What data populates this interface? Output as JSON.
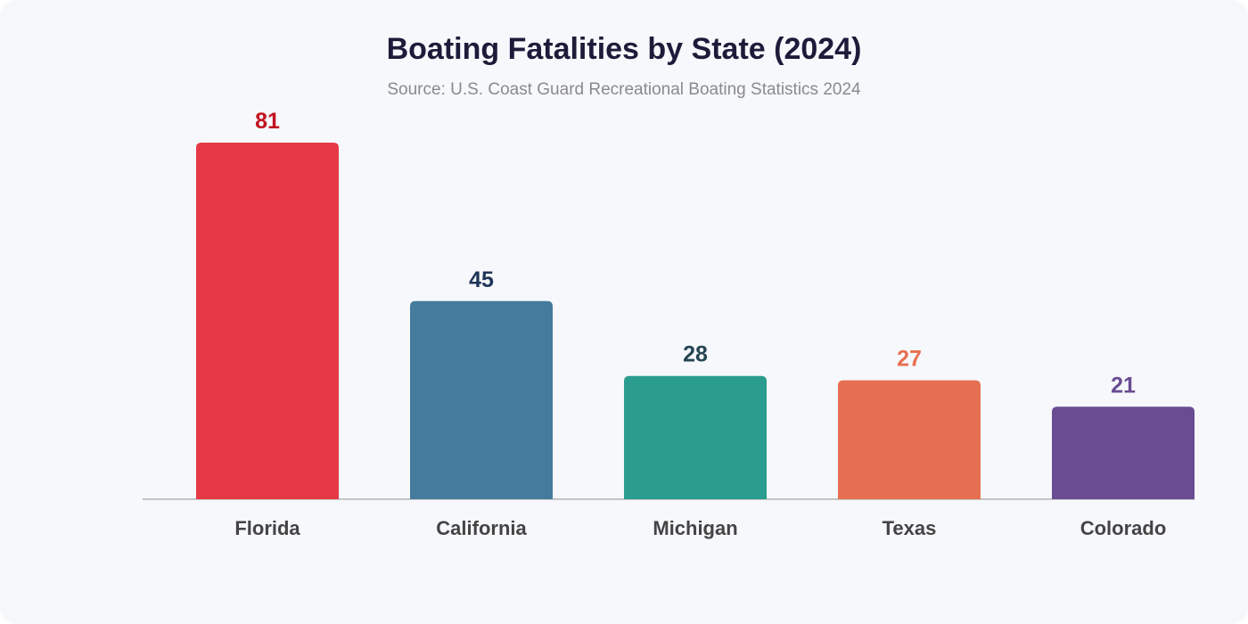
{
  "chart_data": {
    "type": "bar",
    "title": "Boating Fatalities by State (2024)",
    "subtitle": "Source: U.S. Coast Guard Recreational Boating Statistics 2024",
    "xlabel": "",
    "ylabel": "",
    "categories": [
      "Florida",
      "California",
      "Michigan",
      "Texas",
      "Colorado"
    ],
    "values": [
      81,
      45,
      28,
      27,
      21
    ],
    "colors": [
      "#e63946",
      "#457b9d",
      "#2a9d8f",
      "#e76f51",
      "#6a4c93"
    ],
    "label_colors": [
      "#c1121f",
      "#1d3557",
      "#264653",
      "#e76f51",
      "#6a4c93"
    ],
    "ylim": [
      0,
      81
    ],
    "grid": false,
    "legend": "none"
  }
}
